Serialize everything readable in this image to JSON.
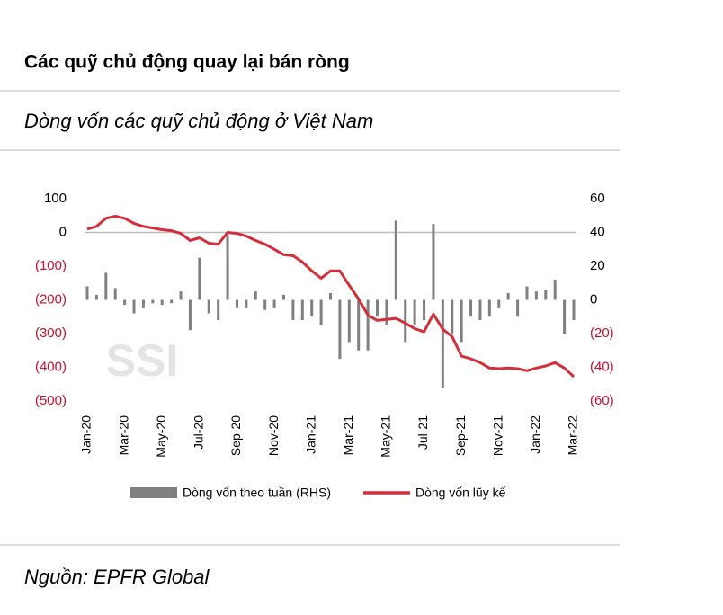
{
  "header": {
    "title": "Các quỹ chủ động quay lại bán ròng",
    "subtitle": "Dòng vốn các quỹ chủ động ở Việt Nam"
  },
  "chart_data": {
    "type": "bar-line",
    "watermark": "SSI",
    "categories": [
      "Jan-20",
      null,
      null,
      null,
      "Mar-20",
      null,
      null,
      null,
      "May-20",
      null,
      null,
      null,
      "Jul-20",
      null,
      null,
      null,
      "Sep-20",
      null,
      null,
      null,
      "Nov-20",
      null,
      null,
      null,
      "Jan-21",
      null,
      null,
      null,
      "Mar-21",
      null,
      null,
      null,
      "May-21",
      null,
      null,
      null,
      "Jul-21",
      null,
      null,
      null,
      "Sep-21",
      null,
      null,
      null,
      "Nov-21",
      null,
      null,
      null,
      "Jan-22",
      null,
      null,
      null,
      "Mar-22"
    ],
    "series": [
      {
        "name": "Dòng vốn theo tuần (RHS)",
        "color": "#808080",
        "axis": "y2",
        "kind": "bar",
        "values": [
          8,
          3,
          16,
          7,
          -3,
          -8,
          -5,
          -2,
          -3,
          -2,
          5,
          -18,
          25,
          -8,
          -12,
          38,
          -5,
          -5,
          5,
          -6,
          -5,
          3,
          -12,
          -12,
          -10,
          -15,
          4,
          -35,
          -25,
          -30,
          -30,
          -10,
          -15,
          47,
          -25,
          -15,
          -12,
          45,
          -52,
          -20,
          -25,
          -10,
          -12,
          -10,
          -5,
          4,
          -10,
          8,
          5,
          6,
          12,
          -20,
          -12
        ]
      },
      {
        "name": "Dòng vốn lũy kế",
        "color": "#d42e3b",
        "axis": "y",
        "kind": "line",
        "values": [
          10,
          18,
          42,
          48,
          42,
          27,
          18,
          13,
          8,
          5,
          -3,
          -24,
          -16,
          -32,
          -35,
          0,
          -3,
          -11,
          -24,
          -35,
          -50,
          -66,
          -69,
          -88,
          -114,
          -136,
          -114,
          -114,
          -157,
          -197,
          -245,
          -261,
          -258,
          -255,
          -269,
          -285,
          -295,
          -242,
          -287,
          -309,
          -367,
          -375,
          -386,
          -402,
          -404,
          -402,
          -404,
          -410,
          -402,
          -396,
          -386,
          -402,
          -428
        ]
      }
    ],
    "ylim": [
      100,
      -500
    ],
    "yticks": [
      100,
      0,
      {
        "value": -100,
        "label": "(100)"
      },
      {
        "value": -200,
        "label": "(200)"
      },
      {
        "value": -300,
        "label": "(300)"
      },
      {
        "value": -400,
        "label": "(400)"
      },
      {
        "value": -500,
        "label": "(500)"
      }
    ],
    "y2lim": [
      60,
      -60
    ],
    "y2ticks": [
      60,
      40,
      20,
      0,
      {
        "value": -20,
        "label": "(20)"
      },
      {
        "value": -40,
        "label": "(40)"
      },
      {
        "value": -60,
        "label": "(60)"
      }
    ],
    "zero_line": true
  },
  "footer": {
    "source": "Nguồn: EPFR Global"
  }
}
